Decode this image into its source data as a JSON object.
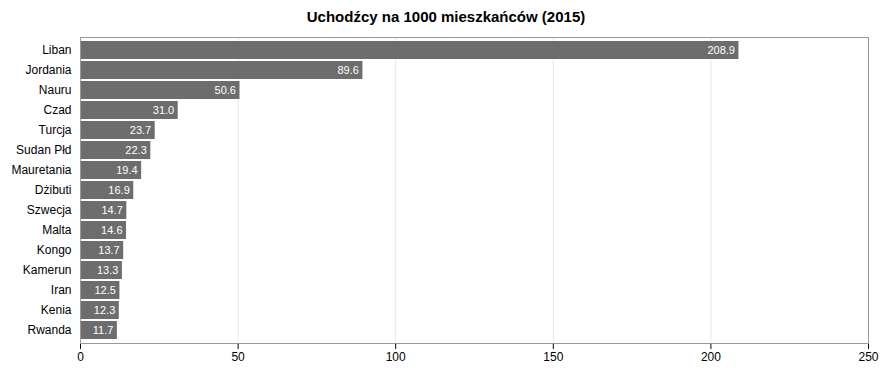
{
  "chart_data": {
    "type": "bar",
    "orientation": "horizontal",
    "title": "Uchodźcy na 1000 mieszkańców (2015)",
    "categories": [
      "Rwanda",
      "Kenia",
      "Iran",
      "Kamerun",
      "Kongo",
      "Malta",
      "Szwecja",
      "Dżibuti",
      "Mauretania",
      "Sudan Płd",
      "Turcja",
      "Czad",
      "Nauru",
      "Jordania",
      "Liban"
    ],
    "values": [
      11.7,
      12.3,
      12.5,
      13.3,
      13.7,
      14.6,
      14.7,
      16.9,
      19.4,
      22.3,
      23.7,
      31.0,
      50.6,
      89.6,
      208.9
    ],
    "value_labels": [
      "11.7",
      "12.3",
      "12.5",
      "13.3",
      "13.7",
      "14.6",
      "14.7",
      "16.9",
      "19.4",
      "22.3",
      "23.7",
      "31.0",
      "50.6",
      "89.6",
      "208.9"
    ],
    "color": "#6d6d6d",
    "xlim": [
      0,
      250
    ],
    "xticks": [
      0,
      50,
      100,
      150,
      200,
      250
    ],
    "grid": true,
    "data_labels": true
  }
}
